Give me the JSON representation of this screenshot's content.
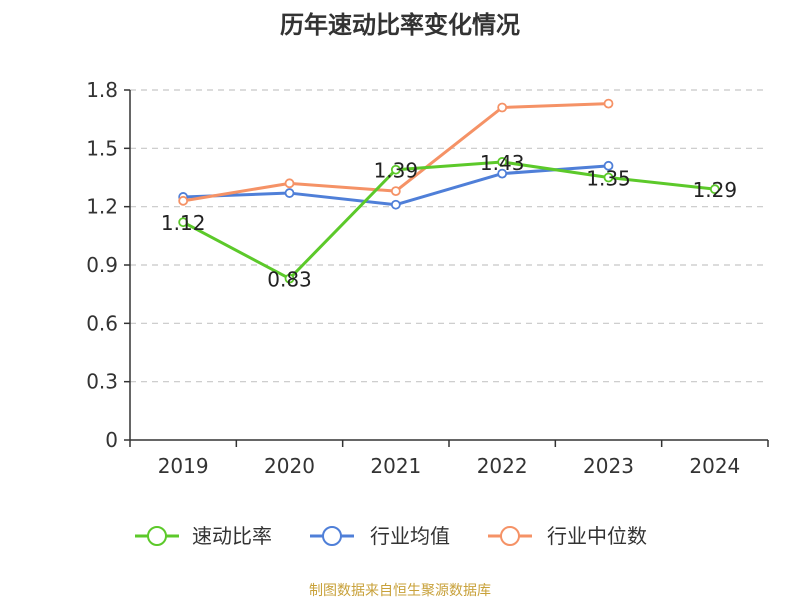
{
  "chart_data": {
    "type": "line",
    "title": "历年速动比率变化情况",
    "categories": [
      "2019",
      "2020",
      "2021",
      "2022",
      "2023",
      "2024"
    ],
    "y_ticks": [
      "0",
      "0.3",
      "0.6",
      "0.9",
      "1.2",
      "1.5",
      "1.8"
    ],
    "ylim": [
      0,
      1.8
    ],
    "grid": true,
    "legend_position": "bottom",
    "series": [
      {
        "name": "速动比率",
        "color": "#5cc92a",
        "values": [
          1.12,
          0.83,
          1.39,
          1.43,
          1.35,
          1.29
        ],
        "labels": [
          "1.12",
          "0.83",
          "1.39",
          "1.43",
          "1.35",
          "1.29"
        ]
      },
      {
        "name": "行业均值",
        "color": "#4f7fd8",
        "values": [
          1.25,
          1.27,
          1.21,
          1.37,
          1.41,
          null
        ]
      },
      {
        "name": "行业中位数",
        "color": "#f59266",
        "values": [
          1.23,
          1.32,
          1.28,
          1.71,
          1.73,
          null
        ]
      }
    ]
  },
  "source": "制图数据来自恒生聚源数据库"
}
